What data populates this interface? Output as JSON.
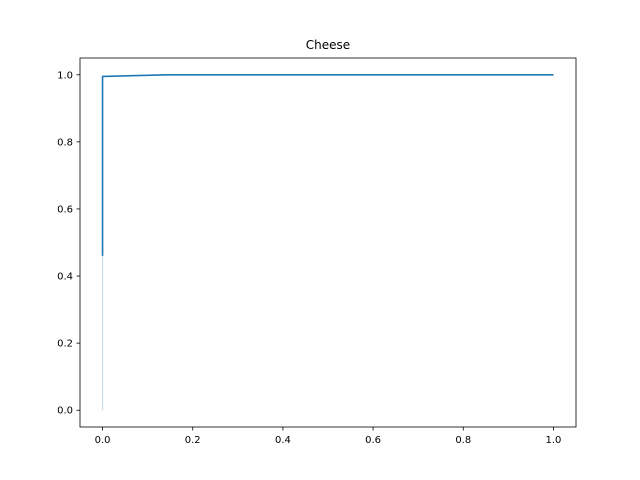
{
  "chart_data": {
    "type": "line",
    "title": "Cheese",
    "xlabel": "",
    "ylabel": "",
    "xlim": [
      -0.05,
      1.05
    ],
    "ylim": [
      -0.05,
      1.05
    ],
    "x_ticks": [
      0.0,
      0.2,
      0.4,
      0.6,
      0.8,
      1.0
    ],
    "x_tick_labels": [
      "0.0",
      "0.2",
      "0.4",
      "0.6",
      "0.8",
      "1.0"
    ],
    "y_ticks": [
      0.0,
      0.2,
      0.4,
      0.6,
      0.8,
      1.0
    ],
    "y_tick_labels": [
      "0.0",
      "0.2",
      "0.4",
      "0.6",
      "0.8",
      "1.0"
    ],
    "grid": false,
    "legend": "none",
    "series": [
      {
        "color": "#c6dcec",
        "x": [
          0.0,
          0.0
        ],
        "y": [
          0.0,
          0.46
        ]
      },
      {
        "color": "#1f77b4",
        "x": [
          0.0,
          0.0,
          0.0,
          0.143,
          1.0
        ],
        "y": [
          0.46,
          0.99,
          0.995,
          1.0,
          1.0
        ]
      }
    ]
  }
}
